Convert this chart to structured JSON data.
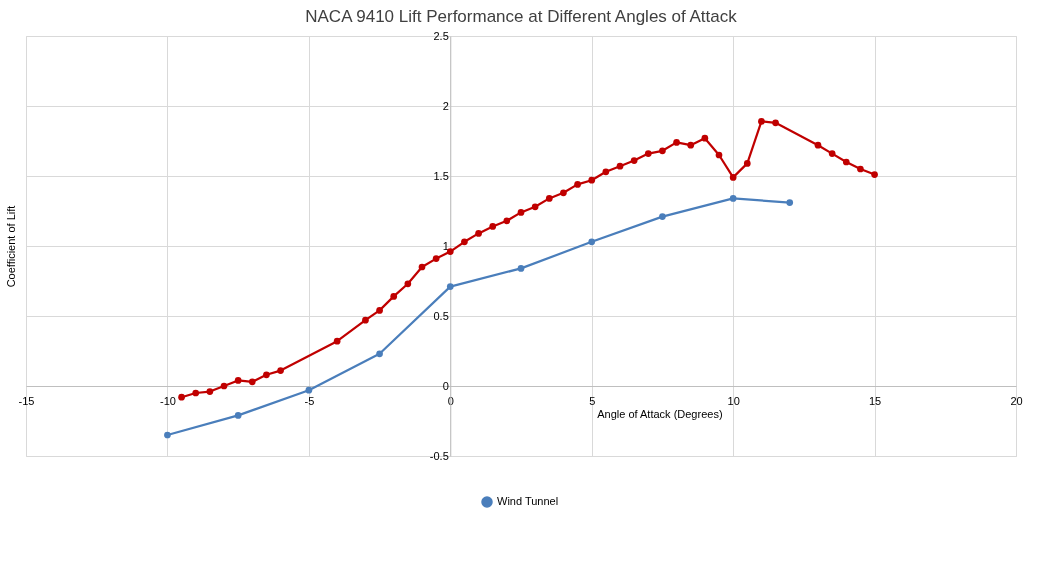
{
  "chart_data": {
    "type": "line",
    "title": "NACA 9410 Lift Performance at Different Angles of Attack",
    "xlabel": "Angle of Attack (Degrees)",
    "ylabel": "Coefficient of Lift",
    "xlim": [
      -15,
      20
    ],
    "xticks": [
      -15,
      -10,
      -5,
      0,
      5,
      10,
      15,
      20
    ],
    "ylim": [
      -0.5,
      2.5
    ],
    "yticks": [
      -0.5,
      0,
      0.5,
      1,
      1.5,
      2,
      2.5
    ],
    "grid": true,
    "legend": "bottom",
    "marker": "circle",
    "line_style": "solid",
    "series": [
      {
        "color": "#c00000",
        "x": [
          -9.5,
          -9,
          -8.5,
          -8,
          -7.5,
          -7,
          -6.5,
          -6,
          -4,
          -3,
          -2.5,
          -2,
          -1.5,
          -1,
          -0.5,
          0,
          0.5,
          1,
          1.5,
          2,
          2.5,
          3,
          3.5,
          4,
          4.5,
          5,
          5.5,
          6,
          6.5,
          7,
          7.5,
          8,
          8.5,
          9,
          9.5,
          10,
          10.5,
          11,
          11.5,
          13,
          13.5,
          14,
          14.5,
          15
        ],
        "values": [
          -0.08,
          -0.05,
          -0.04,
          0.0,
          0.04,
          0.03,
          0.08,
          0.11,
          0.32,
          0.47,
          0.54,
          0.64,
          0.73,
          0.85,
          0.91,
          0.96,
          1.03,
          1.09,
          1.14,
          1.18,
          1.24,
          1.28,
          1.34,
          1.38,
          1.44,
          1.47,
          1.53,
          1.57,
          1.61,
          1.66,
          1.68,
          1.74,
          1.72,
          1.77,
          1.65,
          1.49,
          1.59,
          1.89,
          1.88,
          1.72,
          1.66,
          1.6,
          1.55,
          1.51
        ]
      },
      {
        "name": "Wind Tunnel",
        "color": "#4a7ebb",
        "x": [
          -10,
          -7.5,
          -5,
          -2.5,
          0,
          2.5,
          5,
          7.5,
          10,
          12
        ],
        "values": [
          -0.35,
          -0.21,
          -0.03,
          0.23,
          0.71,
          0.84,
          1.03,
          1.21,
          1.34,
          1.31
        ]
      }
    ]
  }
}
